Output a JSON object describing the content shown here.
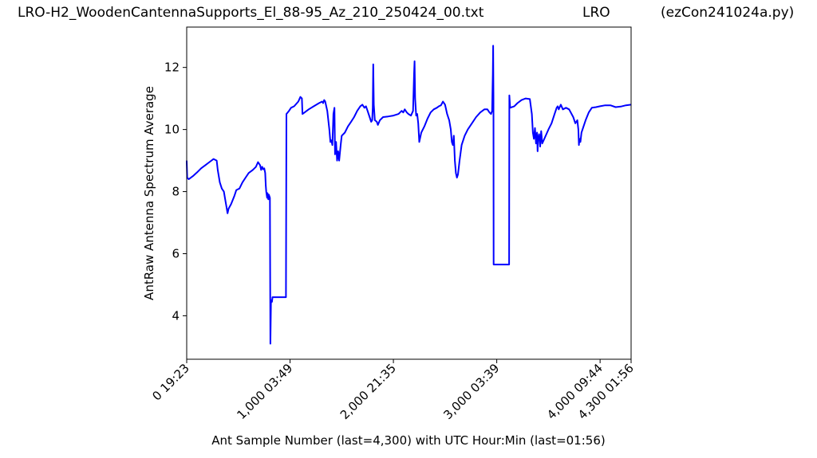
{
  "header": {
    "title_left": "LRO-H2_WoodenCantennaSupports_El_88-95_Az_210_250424_00.txt",
    "title_center": "LRO",
    "title_right": "(ezCon241024a.py)"
  },
  "chart_data": {
    "type": "line",
    "xlabel": "Ant Sample Number (last=4,300) with UTC Hour:Min (last=01:56)",
    "ylabel": "AntRaw Antenna Spectrum Average",
    "xlim": [
      0,
      4300
    ],
    "ylim": [
      2.6,
      13.3
    ],
    "y_ticks": [
      4,
      6,
      8,
      10,
      12
    ],
    "x_ticks": [
      {
        "value": 0,
        "label": "0  19:23"
      },
      {
        "value": 1000,
        "label": "1,000  03:49"
      },
      {
        "value": 2000,
        "label": "2,000  21:35"
      },
      {
        "value": 3000,
        "label": "3,000  03:39"
      },
      {
        "value": 4000,
        "label": "4,000  09:44"
      },
      {
        "value": 4300,
        "label": "4,300  01:56"
      }
    ],
    "line_color": "#0000ff",
    "grid": false,
    "series": [
      {
        "points": [
          [
            0,
            9.0
          ],
          [
            5,
            8.45
          ],
          [
            20,
            8.4
          ],
          [
            60,
            8.5
          ],
          [
            100,
            8.62
          ],
          [
            140,
            8.75
          ],
          [
            180,
            8.85
          ],
          [
            220,
            8.95
          ],
          [
            260,
            9.05
          ],
          [
            290,
            9.0
          ],
          [
            300,
            8.7
          ],
          [
            320,
            8.3
          ],
          [
            340,
            8.1
          ],
          [
            360,
            8.0
          ],
          [
            370,
            7.8
          ],
          [
            385,
            7.5
          ],
          [
            395,
            7.3
          ],
          [
            405,
            7.45
          ],
          [
            430,
            7.6
          ],
          [
            460,
            7.85
          ],
          [
            480,
            8.05
          ],
          [
            510,
            8.1
          ],
          [
            540,
            8.3
          ],
          [
            570,
            8.45
          ],
          [
            600,
            8.6
          ],
          [
            640,
            8.7
          ],
          [
            670,
            8.8
          ],
          [
            690,
            8.95
          ],
          [
            710,
            8.85
          ],
          [
            720,
            8.7
          ],
          [
            730,
            8.8
          ],
          [
            740,
            8.72
          ],
          [
            750,
            8.75
          ],
          [
            760,
            8.6
          ],
          [
            765,
            8.2
          ],
          [
            770,
            8.0
          ],
          [
            778,
            7.8
          ],
          [
            782,
            7.95
          ],
          [
            790,
            7.75
          ],
          [
            795,
            7.9
          ],
          [
            805,
            7.8
          ],
          [
            810,
            3.1
          ],
          [
            815,
            4.4
          ],
          [
            820,
            4.5
          ],
          [
            825,
            4.45
          ],
          [
            830,
            4.6
          ],
          [
            960,
            4.6
          ],
          [
            965,
            10.5
          ],
          [
            990,
            10.6
          ],
          [
            1010,
            10.7
          ],
          [
            1040,
            10.75
          ],
          [
            1080,
            10.9
          ],
          [
            1100,
            11.05
          ],
          [
            1115,
            11.0
          ],
          [
            1120,
            10.5
          ],
          [
            1140,
            10.55
          ],
          [
            1180,
            10.65
          ],
          [
            1230,
            10.75
          ],
          [
            1280,
            10.85
          ],
          [
            1310,
            10.9
          ],
          [
            1320,
            10.85
          ],
          [
            1330,
            10.95
          ],
          [
            1340,
            10.9
          ],
          [
            1360,
            10.6
          ],
          [
            1380,
            10.0
          ],
          [
            1390,
            9.6
          ],
          [
            1400,
            9.65
          ],
          [
            1410,
            9.5
          ],
          [
            1420,
            10.5
          ],
          [
            1430,
            10.7
          ],
          [
            1435,
            9.2
          ],
          [
            1445,
            9.6
          ],
          [
            1455,
            9.0
          ],
          [
            1465,
            9.3
          ],
          [
            1475,
            9.0
          ],
          [
            1490,
            9.5
          ],
          [
            1500,
            9.8
          ],
          [
            1530,
            9.9
          ],
          [
            1560,
            10.1
          ],
          [
            1590,
            10.25
          ],
          [
            1620,
            10.4
          ],
          [
            1650,
            10.6
          ],
          [
            1680,
            10.75
          ],
          [
            1700,
            10.8
          ],
          [
            1720,
            10.7
          ],
          [
            1735,
            10.75
          ],
          [
            1750,
            10.6
          ],
          [
            1770,
            10.4
          ],
          [
            1785,
            10.25
          ],
          [
            1795,
            10.3
          ],
          [
            1800,
            10.7
          ],
          [
            1805,
            12.1
          ],
          [
            1810,
            10.8
          ],
          [
            1820,
            10.3
          ],
          [
            1840,
            10.25
          ],
          [
            1850,
            10.15
          ],
          [
            1870,
            10.3
          ],
          [
            1900,
            10.4
          ],
          [
            1950,
            10.42
          ],
          [
            2000,
            10.45
          ],
          [
            2050,
            10.5
          ],
          [
            2080,
            10.6
          ],
          [
            2095,
            10.55
          ],
          [
            2110,
            10.65
          ],
          [
            2130,
            10.55
          ],
          [
            2145,
            10.5
          ],
          [
            2170,
            10.45
          ],
          [
            2190,
            10.6
          ],
          [
            2200,
            11.8
          ],
          [
            2205,
            12.2
          ],
          [
            2210,
            11.0
          ],
          [
            2220,
            10.45
          ],
          [
            2230,
            10.5
          ],
          [
            2240,
            10.2
          ],
          [
            2250,
            9.6
          ],
          [
            2270,
            9.9
          ],
          [
            2300,
            10.1
          ],
          [
            2330,
            10.35
          ],
          [
            2360,
            10.55
          ],
          [
            2390,
            10.65
          ],
          [
            2420,
            10.7
          ],
          [
            2440,
            10.75
          ],
          [
            2460,
            10.78
          ],
          [
            2480,
            10.9
          ],
          [
            2500,
            10.8
          ],
          [
            2520,
            10.5
          ],
          [
            2540,
            10.3
          ],
          [
            2555,
            10.0
          ],
          [
            2565,
            9.6
          ],
          [
            2575,
            9.5
          ],
          [
            2585,
            9.8
          ],
          [
            2595,
            9.0
          ],
          [
            2605,
            8.6
          ],
          [
            2615,
            8.45
          ],
          [
            2625,
            8.55
          ],
          [
            2640,
            9.0
          ],
          [
            2660,
            9.5
          ],
          [
            2690,
            9.8
          ],
          [
            2720,
            10.0
          ],
          [
            2760,
            10.2
          ],
          [
            2800,
            10.4
          ],
          [
            2840,
            10.55
          ],
          [
            2880,
            10.65
          ],
          [
            2910,
            10.65
          ],
          [
            2930,
            10.55
          ],
          [
            2945,
            10.5
          ],
          [
            2955,
            10.6
          ],
          [
            2962,
            11.8
          ],
          [
            2965,
            12.7
          ],
          [
            2968,
            11.0
          ],
          [
            2970,
            5.65
          ],
          [
            3120,
            5.65
          ],
          [
            3122,
            11.1
          ],
          [
            3130,
            10.7
          ],
          [
            3170,
            10.75
          ],
          [
            3200,
            10.85
          ],
          [
            3240,
            10.95
          ],
          [
            3280,
            11.0
          ],
          [
            3320,
            10.98
          ],
          [
            3340,
            10.5
          ],
          [
            3350,
            9.9
          ],
          [
            3360,
            9.7
          ],
          [
            3370,
            10.05
          ],
          [
            3380,
            9.55
          ],
          [
            3390,
            9.9
          ],
          [
            3395,
            9.3
          ],
          [
            3400,
            9.7
          ],
          [
            3410,
            9.85
          ],
          [
            3420,
            9.45
          ],
          [
            3430,
            9.95
          ],
          [
            3440,
            9.55
          ],
          [
            3460,
            9.7
          ],
          [
            3480,
            9.85
          ],
          [
            3500,
            10.0
          ],
          [
            3530,
            10.2
          ],
          [
            3560,
            10.5
          ],
          [
            3580,
            10.7
          ],
          [
            3590,
            10.75
          ],
          [
            3600,
            10.65
          ],
          [
            3620,
            10.8
          ],
          [
            3640,
            10.65
          ],
          [
            3670,
            10.7
          ],
          [
            3700,
            10.65
          ],
          [
            3740,
            10.4
          ],
          [
            3760,
            10.2
          ],
          [
            3780,
            10.3
          ],
          [
            3790,
            10.0
          ],
          [
            3795,
            9.5
          ],
          [
            3800,
            9.7
          ],
          [
            3810,
            9.6
          ],
          [
            3820,
            9.9
          ],
          [
            3840,
            10.1
          ],
          [
            3860,
            10.3
          ],
          [
            3890,
            10.55
          ],
          [
            3920,
            10.7
          ],
          [
            3960,
            10.72
          ],
          [
            4000,
            10.75
          ],
          [
            4050,
            10.78
          ],
          [
            4100,
            10.78
          ],
          [
            4150,
            10.72
          ],
          [
            4200,
            10.74
          ],
          [
            4250,
            10.78
          ],
          [
            4300,
            10.8
          ]
        ]
      }
    ]
  }
}
